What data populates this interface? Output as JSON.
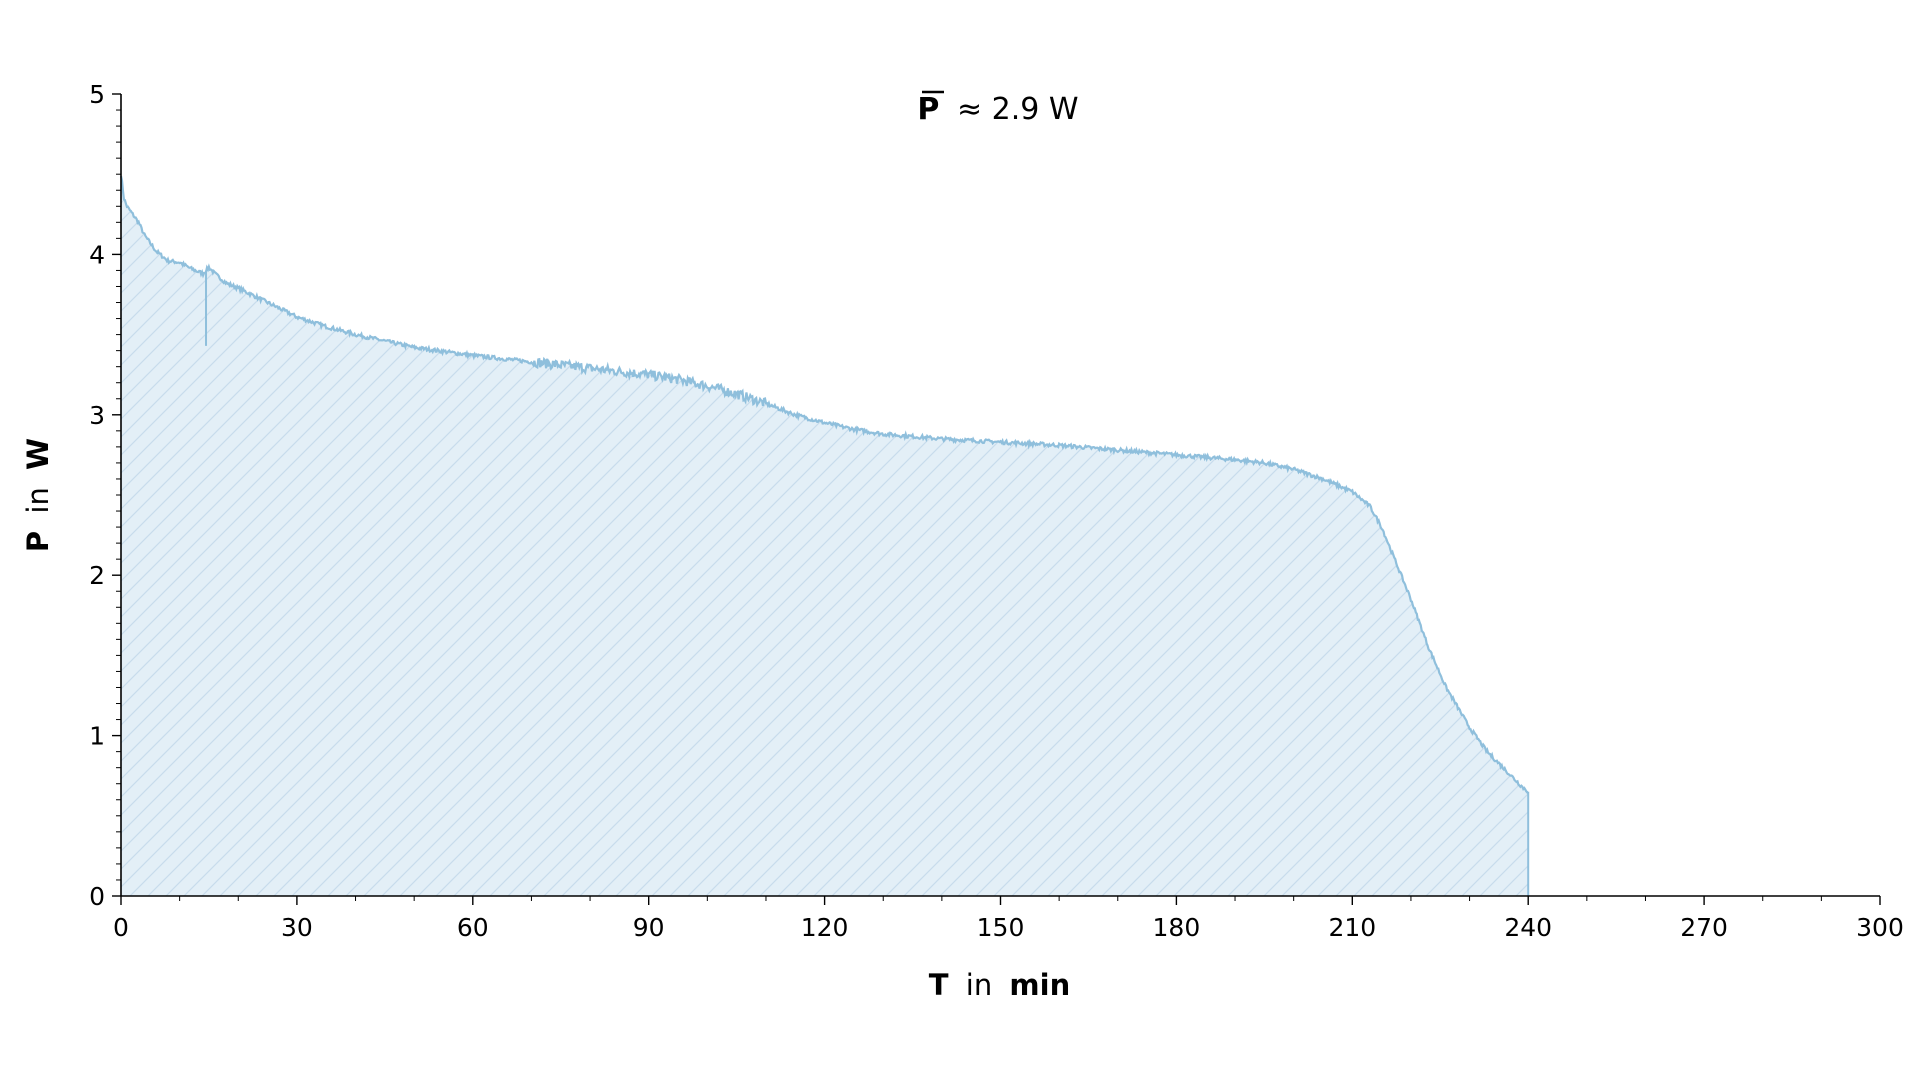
{
  "chart_data": {
    "type": "area",
    "title": "",
    "annotation": {
      "symbol": "P",
      "text": "≈ 2.9 W"
    },
    "xlabel": {
      "var": "T",
      "mid": "in",
      "unit": "min"
    },
    "ylabel": {
      "var": "P",
      "mid": "in",
      "unit": "W"
    },
    "xlim": [
      0,
      300
    ],
    "ylim": [
      0,
      5
    ],
    "xticks": [
      0,
      30,
      60,
      90,
      120,
      150,
      180,
      210,
      240,
      270,
      300
    ],
    "yticks": [
      0,
      1,
      2,
      3,
      4,
      5
    ],
    "grid": false,
    "fill": "hatched",
    "colors": {
      "line": "#8fbfdc",
      "fill": "#e3eff7",
      "hatch": "#c8dcec",
      "axis": "#000000"
    },
    "series": [
      {
        "x": [
          0,
          0.5,
          1,
          2,
          3,
          4,
          5,
          6,
          8,
          10,
          12,
          14,
          15,
          16,
          18,
          20,
          25,
          30,
          35,
          40,
          50,
          60,
          70,
          80,
          90,
          95,
          100,
          105,
          110,
          115,
          120,
          125,
          130,
          140,
          150,
          160,
          170,
          180,
          190,
          195,
          200,
          205,
          210,
          213,
          215,
          217,
          220,
          223,
          226,
          230,
          233,
          236,
          239,
          240
        ],
        "y": [
          4.5,
          4.35,
          4.3,
          4.25,
          4.2,
          4.12,
          4.07,
          4.02,
          3.96,
          3.95,
          3.91,
          3.88,
          3.92,
          3.88,
          3.82,
          3.79,
          3.7,
          3.61,
          3.55,
          3.5,
          3.42,
          3.37,
          3.33,
          3.29,
          3.25,
          3.22,
          3.18,
          3.13,
          3.07,
          3.0,
          2.95,
          2.91,
          2.88,
          2.85,
          2.83,
          2.81,
          2.78,
          2.75,
          2.72,
          2.7,
          2.66,
          2.6,
          2.52,
          2.43,
          2.3,
          2.12,
          1.85,
          1.55,
          1.3,
          1.05,
          0.9,
          0.79,
          0.68,
          0.65
        ]
      }
    ]
  }
}
